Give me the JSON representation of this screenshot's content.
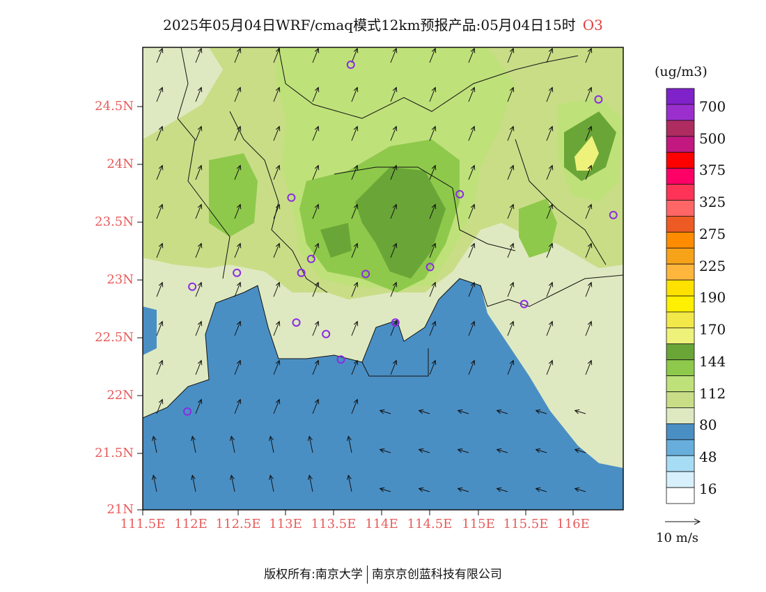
{
  "title": {
    "text": "2025年05月04日WRF/cmaq模式12km预报产品:05月04日15时",
    "species": "O3"
  },
  "axes": {
    "y_ticks": [
      "24.5N",
      "24N",
      "23.5N",
      "23N",
      "22.5N",
      "22N",
      "21.5N",
      "21N"
    ],
    "x_ticks": [
      "111.5E",
      "112E",
      "112.5E",
      "113E",
      "113.5E",
      "114E",
      "114.5E",
      "115E",
      "115.5E",
      "116E"
    ],
    "lon_range": [
      111.5,
      116.35
    ],
    "lat_range": [
      21.0,
      25.0
    ]
  },
  "colorbar": {
    "unit": "(ug/m3)",
    "labels": [
      "700",
      "500",
      "375",
      "325",
      "275",
      "225",
      "190",
      "170",
      "144",
      "112",
      "80",
      "48",
      "16"
    ],
    "colors": [
      "#7f22c9",
      "#9b2fce",
      "#ae2c5f",
      "#c2187f",
      "#ff0000",
      "#ff0066",
      "#ff3355",
      "#ff6666",
      "#ee5a24",
      "#ff8c00",
      "#f7a31a",
      "#ffb63d",
      "#ffe100",
      "#ffef00",
      "#f2e84a",
      "#eef27a",
      "#6aa637",
      "#8ec94b",
      "#bfe17a",
      "#c9dd87",
      "#dfe9c1",
      "#4a8fc4",
      "#67aedc",
      "#a7dcf5",
      "#d8f0fb",
      "#ffffff"
    ]
  },
  "wind_reference": {
    "label": "10 m/s"
  },
  "stations": [
    {
      "lon": 113.6,
      "lat": 24.85
    },
    {
      "lon": 116.1,
      "lat": 24.55
    },
    {
      "lon": 113.0,
      "lat": 23.7
    },
    {
      "lon": 114.7,
      "lat": 23.73
    },
    {
      "lon": 116.25,
      "lat": 23.55
    },
    {
      "lon": 113.2,
      "lat": 23.17
    },
    {
      "lon": 113.1,
      "lat": 23.05
    },
    {
      "lon": 112.45,
      "lat": 23.05
    },
    {
      "lon": 113.75,
      "lat": 23.04
    },
    {
      "lon": 114.4,
      "lat": 23.1
    },
    {
      "lon": 112.0,
      "lat": 22.93
    },
    {
      "lon": 115.35,
      "lat": 22.78
    },
    {
      "lon": 113.05,
      "lat": 22.62
    },
    {
      "lon": 113.35,
      "lat": 22.52
    },
    {
      "lon": 114.05,
      "lat": 22.62
    },
    {
      "lon": 113.5,
      "lat": 22.3
    },
    {
      "lon": 111.95,
      "lat": 21.85
    }
  ],
  "footer": {
    "left": "版权所有:南京大学",
    "right": "南京京创蓝科技有限公司"
  }
}
